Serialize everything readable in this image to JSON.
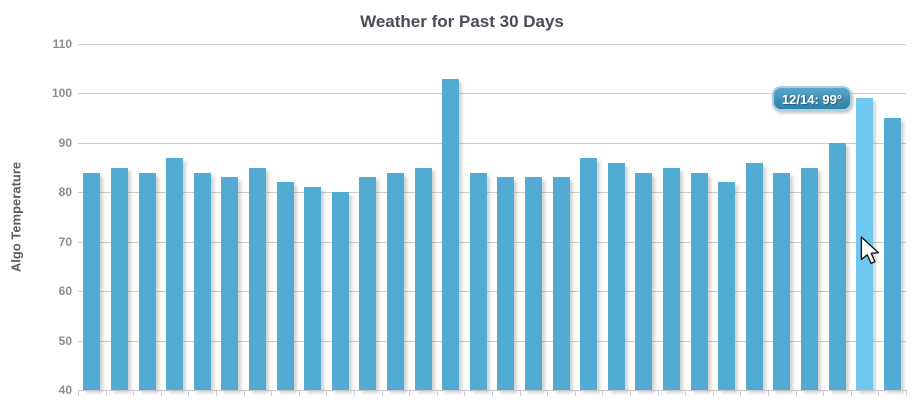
{
  "colors": {
    "bar": "#52abd3",
    "bar_highlight": "#6fc8f0",
    "gridline": "#cccccc",
    "tick_label": "#8c8c8c",
    "chart_title": "#4b4b55",
    "axis_title": "#5b5b64",
    "x_axis_ticks": "#bfd0dc",
    "tooltip_background_top": "#58a8cc",
    "tooltip_background_bottom": "#3182a8",
    "tooltip_border": "#a9cede",
    "tooltip_text": "#ffffff"
  },
  "chart_data": {
    "type": "bar",
    "title": "Weather for Past 30 Days",
    "xlabel": "",
    "ylabel": "Algo Temperature",
    "ylim": [
      40,
      110
    ],
    "yticks": [
      110,
      100,
      90,
      80,
      70,
      60,
      50,
      40
    ],
    "grid": "horizontal-only",
    "legend": "none",
    "bar_count": 30,
    "values": [
      84,
      85,
      84,
      87,
      84,
      83,
      85,
      82,
      81,
      80,
      83,
      84,
      85,
      103,
      84,
      83,
      83,
      83,
      87,
      86,
      84,
      85,
      84,
      82,
      86,
      84,
      85,
      90,
      99,
      95
    ],
    "highlighted_index": 28,
    "tooltip": {
      "label": "12/14: 99°",
      "date": "12/14",
      "value": 99
    }
  }
}
